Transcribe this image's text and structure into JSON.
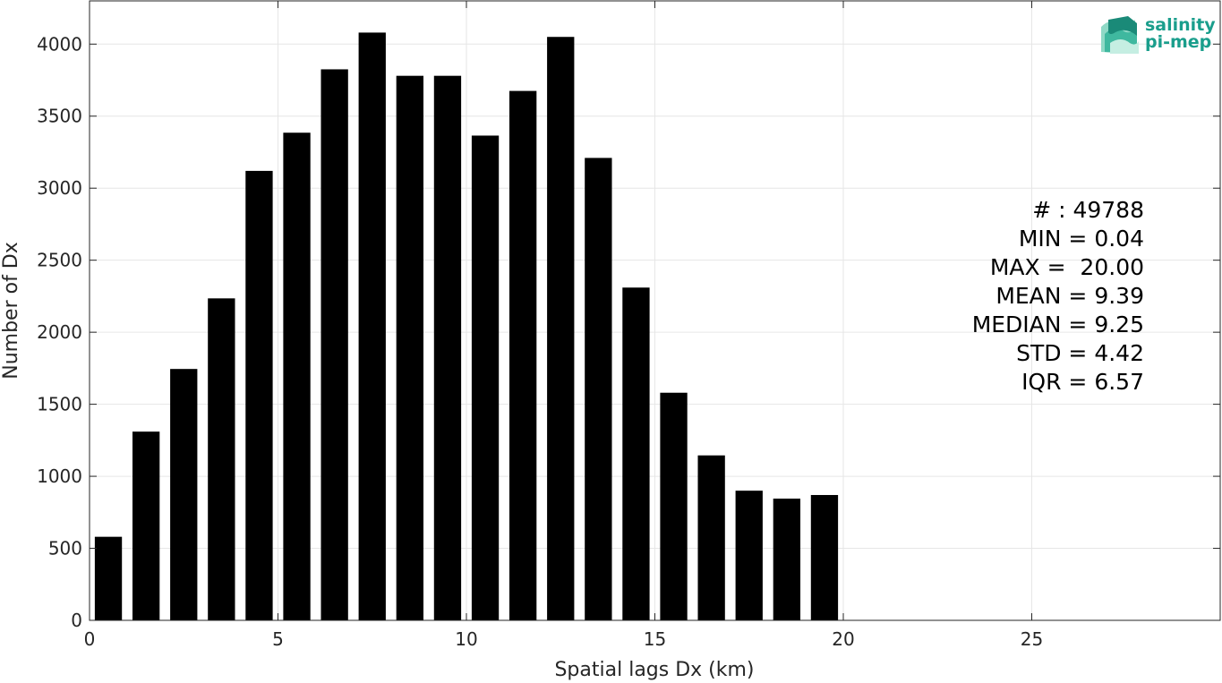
{
  "chart_data": {
    "type": "bar",
    "x": [
      0.5,
      1.5,
      2.5,
      3.5,
      4.5,
      5.5,
      6.5,
      7.5,
      8.5,
      9.5,
      10.5,
      11.5,
      12.5,
      13.5,
      14.5,
      15.5,
      16.5,
      17.5,
      18.5,
      19.5
    ],
    "values": [
      580,
      1310,
      1745,
      2235,
      3120,
      3385,
      3825,
      4080,
      3780,
      3780,
      3365,
      3675,
      4050,
      3210,
      2310,
      1580,
      1145,
      900,
      845,
      870
    ],
    "bin_width": 1,
    "bar_color": "#000000",
    "xlabel": "Spatial lags Dx (km)",
    "ylabel": "Number of Dx",
    "xlim": [
      0,
      30
    ],
    "ylim": [
      0,
      4300
    ],
    "xticks": [
      0,
      5,
      10,
      15,
      20,
      25
    ],
    "yticks": [
      0,
      500,
      1000,
      1500,
      2000,
      2500,
      3000,
      3500,
      4000
    ],
    "grid": true,
    "annotations": [
      "# : 49788",
      "MIN = 0.04",
      "MAX =  20.00",
      "MEAN = 9.39",
      "MEDIAN = 9.25",
      "STD = 4.42",
      "IQR = 6.57"
    ]
  },
  "logo": {
    "line1": "salinity",
    "line2": "pi-mep",
    "color": "#1a9e8c"
  }
}
